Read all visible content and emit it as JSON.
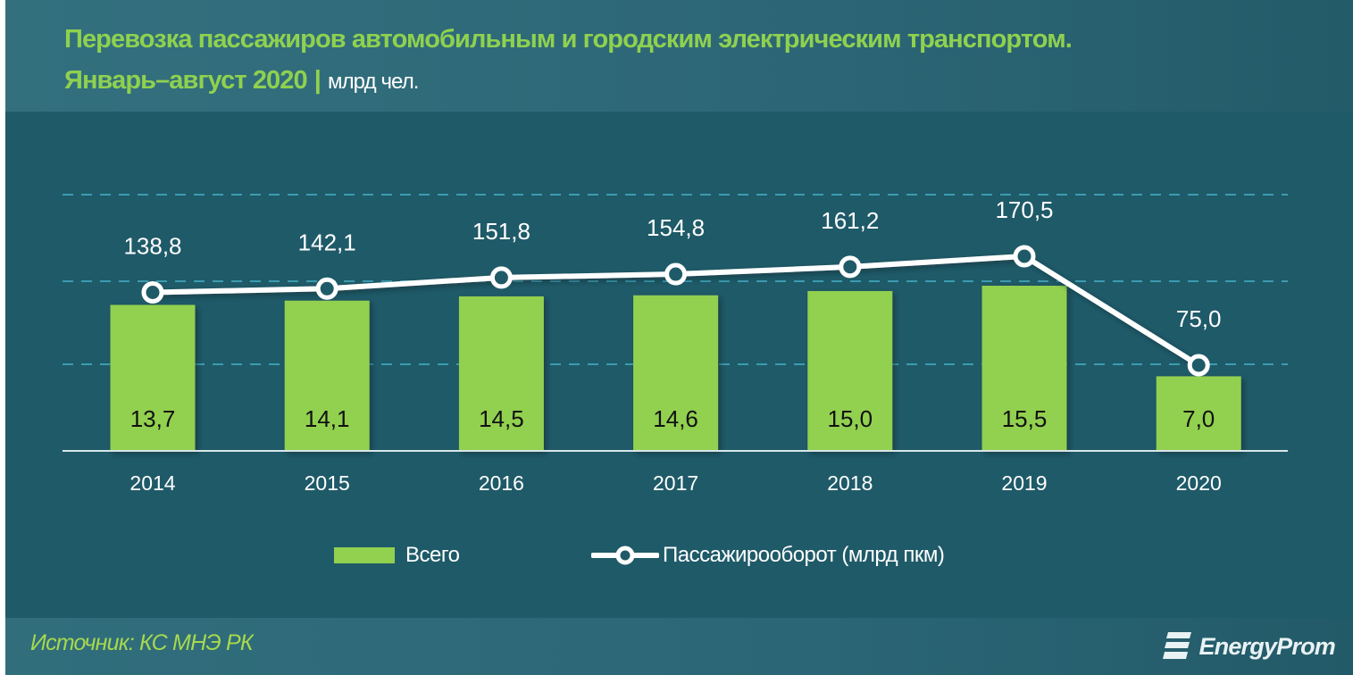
{
  "header": {
    "title": "Перевозка пассажиров автомобильным и городским электрическим транспортом.",
    "period": "Январь–август 2020",
    "separator": "|",
    "unit": "млрд чел."
  },
  "legend": {
    "bar_label": "Всего",
    "line_label": "Пассажирооборот (млрд пкм)"
  },
  "footer": {
    "source": "Источник: КС МНЭ РК",
    "logo": "EnergyProm"
  },
  "colors": {
    "background": "#1f5a68",
    "header_bg": "#2d6777",
    "title": "#8fd14f",
    "bar": "#92d050",
    "line": "#ffffff",
    "gridline": "#3b9cb0",
    "axis": "#d9e6ea"
  },
  "chart_data": {
    "type": "bar",
    "title": "Перевозка пассажиров автомобильным и городским электрическим транспортом. Январь–август 2020 | млрд чел.",
    "xlabel": "",
    "ylabel": "",
    "categories": [
      "2014",
      "2015",
      "2016",
      "2017",
      "2018",
      "2019",
      "2020"
    ],
    "series": [
      {
        "name": "Всего",
        "type": "bar",
        "unit": "млрд чел.",
        "values": [
          13.7,
          14.1,
          14.5,
          14.6,
          15.0,
          15.5,
          7.0
        ],
        "labels": [
          "13,7",
          "14,1",
          "14,5",
          "14,6",
          "15,0",
          "15,5",
          "7,0"
        ]
      },
      {
        "name": "Пассажирооборот (млрд пкм)",
        "type": "line",
        "unit": "млрд пкм",
        "values": [
          138.8,
          142.1,
          151.8,
          154.8,
          161.2,
          170.5,
          75.0
        ],
        "labels": [
          "138,8",
          "142,1",
          "151,8",
          "154,8",
          "161,2",
          "170,5",
          "75,0"
        ]
      }
    ],
    "grid": true,
    "gridline_style": "dashed horizontal",
    "legend_position": "bottom",
    "source": "Источник: КС МНЭ РК"
  }
}
